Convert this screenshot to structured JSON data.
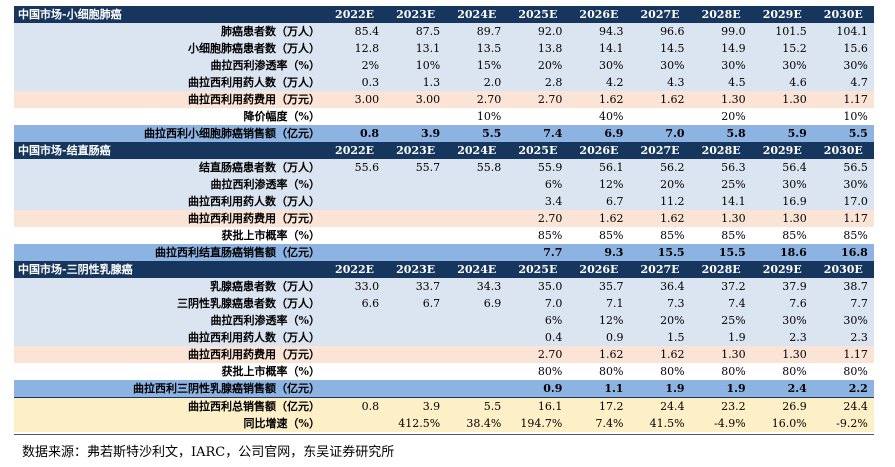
{
  "years": [
    "2022E",
    "2023E",
    "2024E",
    "2025E",
    "2026E",
    "2027E",
    "2028E",
    "2029E",
    "2030E"
  ],
  "sections": [
    {
      "title": "中国市场-小细胞肺癌",
      "rows": [
        {
          "label": "肺癌患者数（万人）",
          "bg": "blue",
          "values": [
            "85.4",
            "87.5",
            "89.7",
            "92.0",
            "94.3",
            "96.6",
            "99.0",
            "101.5",
            "104.1"
          ]
        },
        {
          "label": "小细胞肺癌患者数（万人）",
          "bg": "blue",
          "values": [
            "12.8",
            "13.1",
            "13.5",
            "13.8",
            "14.1",
            "14.5",
            "14.9",
            "15.2",
            "15.6"
          ]
        },
        {
          "label": "曲拉西利渗透率（%）",
          "bg": "blue",
          "values": [
            "2%",
            "10%",
            "15%",
            "20%",
            "30%",
            "30%",
            "30%",
            "30%",
            "30%"
          ]
        },
        {
          "label": "曲拉西利用药人数（万人）",
          "bg": "blue",
          "values": [
            "0.3",
            "1.3",
            "2.0",
            "2.8",
            "4.2",
            "4.3",
            "4.5",
            "4.6",
            "4.7"
          ]
        },
        {
          "label": "曲拉西利用药费用（万元）",
          "bg": "peach",
          "values": [
            "3.00",
            "3.00",
            "2.70",
            "2.70",
            "1.62",
            "1.62",
            "1.30",
            "1.30",
            "1.17"
          ]
        },
        {
          "label": "降价幅度（%）",
          "bg": "white",
          "values": [
            "",
            "",
            "10%",
            "",
            "40%",
            "",
            "20%",
            "",
            "10%"
          ]
        },
        {
          "label": "曲拉西利小细胞肺癌销售额（亿元）",
          "bg": "sum",
          "values": [
            "0.8",
            "3.9",
            "5.5",
            "7.4",
            "6.9",
            "7.0",
            "5.8",
            "5.9",
            "5.5"
          ]
        }
      ]
    },
    {
      "title": "中国市场-结直肠癌",
      "rows": [
        {
          "label": "结直肠癌患者数（万人）",
          "bg": "blue",
          "values": [
            "55.6",
            "55.7",
            "55.8",
            "55.9",
            "56.1",
            "56.2",
            "56.3",
            "56.4",
            "56.5"
          ]
        },
        {
          "label": "曲拉西利渗透率（%）",
          "bg": "blue",
          "values": [
            "",
            "",
            "",
            "6%",
            "12%",
            "20%",
            "25%",
            "30%",
            "30%"
          ]
        },
        {
          "label": "曲拉西利用药人数（万人）",
          "bg": "blue",
          "values": [
            "",
            "",
            "",
            "3.4",
            "6.7",
            "11.2",
            "14.1",
            "16.9",
            "17.0"
          ]
        },
        {
          "label": "曲拉西利用药费用（万元）",
          "bg": "peach",
          "values": [
            "",
            "",
            "",
            "2.70",
            "1.62",
            "1.62",
            "1.30",
            "1.30",
            "1.17"
          ]
        },
        {
          "label": "获批上市概率（%）",
          "bg": "white",
          "values": [
            "",
            "",
            "",
            "85%",
            "85%",
            "85%",
            "85%",
            "85%",
            "85%"
          ]
        },
        {
          "label": "曲拉西利结直肠癌销售额（亿元）",
          "bg": "sum",
          "values": [
            "",
            "",
            "",
            "7.7",
            "9.3",
            "15.5",
            "15.5",
            "18.6",
            "16.8"
          ]
        }
      ]
    },
    {
      "title": "中国市场-三阴性乳腺癌",
      "rows": [
        {
          "label": "乳腺癌患者数（万人）",
          "bg": "blue",
          "values": [
            "33.0",
            "33.7",
            "34.3",
            "35.0",
            "35.7",
            "36.4",
            "37.2",
            "37.9",
            "38.7"
          ]
        },
        {
          "label": "三阴性乳腺癌患者数（万人）",
          "bg": "blue",
          "values": [
            "6.6",
            "6.7",
            "6.9",
            "7.0",
            "7.1",
            "7.3",
            "7.4",
            "7.6",
            "7.7"
          ]
        },
        {
          "label": "曲拉西利渗透率（%）",
          "bg": "blue",
          "values": [
            "",
            "",
            "",
            "6%",
            "12%",
            "20%",
            "25%",
            "30%",
            "30%"
          ]
        },
        {
          "label": "曲拉西利用药人数（万人）",
          "bg": "blue",
          "values": [
            "",
            "",
            "",
            "0.4",
            "0.9",
            "1.5",
            "1.9",
            "2.3",
            "2.3"
          ]
        },
        {
          "label": "曲拉西利用药费用（万元）",
          "bg": "peach",
          "values": [
            "",
            "",
            "",
            "2.70",
            "1.62",
            "1.62",
            "1.30",
            "1.30",
            "1.17"
          ]
        },
        {
          "label": "获批上市概率（%）",
          "bg": "white",
          "values": [
            "",
            "",
            "",
            "80%",
            "80%",
            "80%",
            "80%",
            "80%",
            "80%"
          ]
        },
        {
          "label": "曲拉西利三阴性乳腺癌销售额（亿元）",
          "bg": "sum",
          "values": [
            "",
            "",
            "",
            "0.9",
            "1.1",
            "1.9",
            "1.9",
            "2.4",
            "2.2"
          ]
        }
      ]
    }
  ],
  "totals": [
    {
      "label": "曲拉西利总销售额（亿元）",
      "values": [
        "0.8",
        "3.9",
        "5.5",
        "16.1",
        "17.2",
        "24.4",
        "23.2",
        "26.9",
        "24.4"
      ]
    },
    {
      "label": "同比增速（%）",
      "values": [
        "",
        "412.5%",
        "38.4%",
        "194.7%",
        "7.4%",
        "41.5%",
        "-4.9%",
        "16.0%",
        "-9.2%"
      ]
    }
  ],
  "source": "数据来源：弗若斯特沙利文，IARC，公司官网，东吴证券研究所"
}
